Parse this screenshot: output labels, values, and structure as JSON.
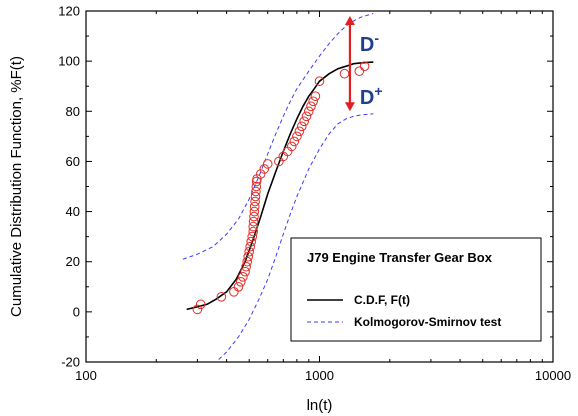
{
  "chart_data": {
    "type": "scatter",
    "xscale": "log",
    "xlim": [
      100,
      10000
    ],
    "ylim": [
      -20,
      120
    ],
    "xticks": [
      100,
      1000,
      10000
    ],
    "xtick_labels": [
      "100",
      "1000",
      "10000"
    ],
    "yticks": [
      -20,
      0,
      20,
      40,
      60,
      80,
      100,
      120
    ],
    "ytick_labels": [
      "-20",
      "0",
      "20",
      "40",
      "60",
      "80",
      "100",
      "120"
    ],
    "xlabel": "ln(t)",
    "ylabel": "Cumulative Distribution Function, %F(t)",
    "grid": false,
    "legend": {
      "position": "bottom-right",
      "title": "J79 Engine Transfer Gear Box",
      "entries": [
        {
          "label": "C.D.F, F(t)",
          "style": "solid",
          "color": "#000000"
        },
        {
          "label": "Kolmogorov-Smirnov test",
          "style": "dashed",
          "color": "#3b3bff"
        }
      ]
    },
    "annotations": {
      "d_minus": {
        "label": "D",
        "sup": "-"
      },
      "d_plus": {
        "label": "D",
        "sup": "+"
      },
      "arrow_color": "#e02020",
      "arrow_x": 1350,
      "arrow_from": 80,
      "arrow_to": 118
    },
    "series": [
      {
        "name": "C.D.F, F(t)",
        "kind": "line",
        "style": "solid",
        "color": "#000000",
        "x": [
          270,
          300,
          330,
          360,
          400,
          440,
          480,
          520,
          560,
          600,
          650,
          700,
          750,
          800,
          850,
          900,
          950,
          1000,
          1100,
          1200,
          1300,
          1400,
          1500,
          1600,
          1700
        ],
        "y": [
          1,
          2,
          3,
          5,
          8,
          13,
          20,
          29,
          38,
          47,
          56,
          64,
          71,
          77,
          82,
          86,
          89,
          92,
          95,
          97,
          98,
          99,
          99.3,
          99.5,
          99.6
        ]
      },
      {
        "name": "Kolmogorov-Smirnov test",
        "kind": "line",
        "style": "dashed",
        "color": "#3b3bff",
        "x": [
          260,
          300,
          350,
          400,
          450,
          500,
          550,
          600,
          650,
          700,
          750,
          800,
          900,
          1000,
          1100,
          1200,
          1300,
          1400,
          1500,
          1700
        ],
        "y": [
          21,
          23,
          26,
          31,
          37,
          45,
          54,
          63,
          71,
          78,
          84,
          89,
          96,
          102,
          107,
          111,
          114,
          116,
          117.5,
          119
        ]
      },
      {
        "kind": "line",
        "style": "dashed",
        "color": "#3b3bff",
        "x": [
          370,
          400,
          450,
          500,
          550,
          600,
          650,
          700,
          750,
          800,
          900,
          1000,
          1100,
          1200,
          1300,
          1400,
          1500,
          1700
        ],
        "y": [
          -19,
          -16,
          -10,
          -3,
          5,
          13,
          22,
          31,
          39,
          46,
          57,
          65,
          71,
          75,
          77,
          78,
          78.5,
          79
        ]
      },
      {
        "kind": "scatter",
        "marker": "open-circle",
        "color": "#e0302a",
        "x": [
          300,
          310,
          380,
          430,
          450,
          460,
          470,
          480,
          485,
          490,
          495,
          500,
          505,
          510,
          515,
          520,
          520,
          522,
          524,
          526,
          528,
          530,
          532,
          534,
          536,
          538,
          540,
          560,
          580,
          600,
          670,
          700,
          730,
          760,
          780,
          800,
          820,
          840,
          860,
          880,
          900,
          920,
          940,
          960,
          1000,
          1280,
          1480,
          1560
        ],
        "y": [
          1,
          3,
          6,
          8,
          10,
          12,
          14,
          16,
          18,
          20,
          22,
          24,
          26,
          28,
          30,
          32,
          34,
          36,
          38,
          40,
          42,
          44,
          46,
          48,
          50,
          52,
          53,
          55,
          57,
          59,
          60,
          62,
          64,
          66,
          68,
          70,
          72,
          74,
          76,
          78,
          80,
          82,
          84,
          86,
          92,
          95,
          96,
          98
        ]
      }
    ]
  }
}
